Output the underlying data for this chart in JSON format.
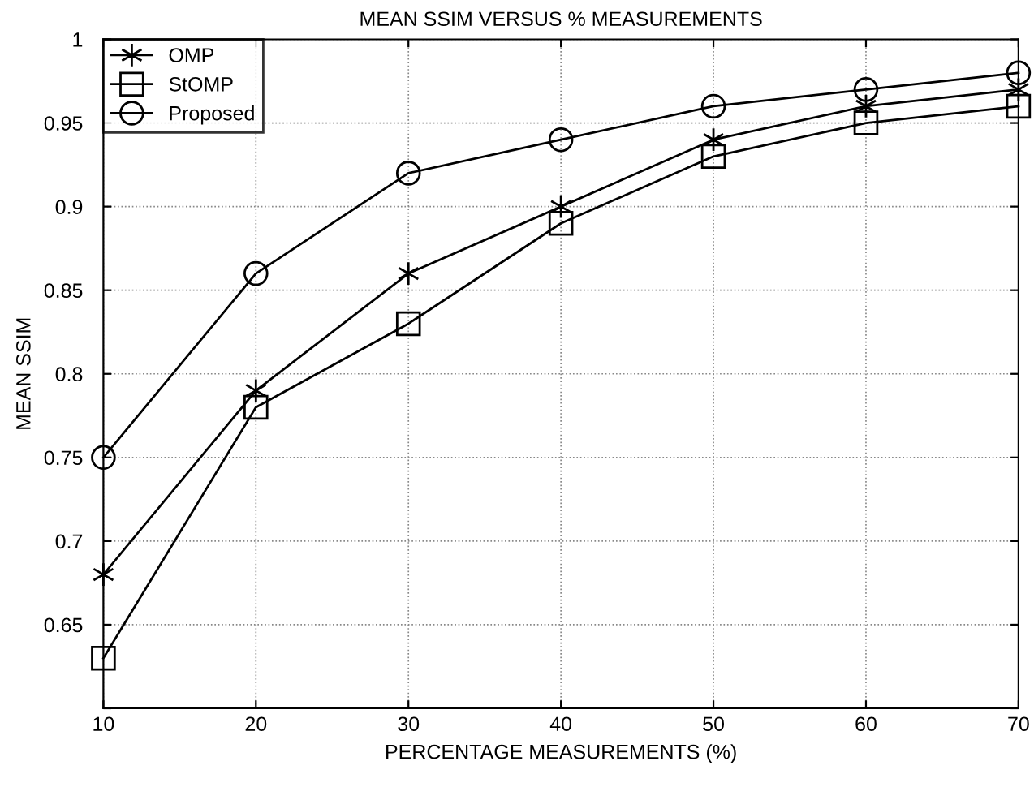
{
  "chart_data": {
    "type": "line",
    "title": "MEAN SSIM VERSUS % MEASUREMENTS",
    "xlabel": "PERCENTAGE MEASUREMENTS (%)",
    "ylabel": "MEAN SSIM",
    "x": [
      10,
      20,
      30,
      40,
      50,
      60,
      70
    ],
    "series": [
      {
        "name": "OMP",
        "color": "#000000",
        "marker": "cross",
        "values": [
          0.68,
          0.79,
          0.86,
          0.9,
          0.94,
          0.96,
          0.97
        ]
      },
      {
        "name": "StOMP",
        "color": "#000000",
        "marker": "square",
        "values": [
          0.63,
          0.78,
          0.83,
          0.89,
          0.93,
          0.95,
          0.96
        ]
      },
      {
        "name": "Proposed",
        "color": "#000000",
        "marker": "circle",
        "values": [
          0.75,
          0.86,
          0.92,
          0.94,
          0.96,
          0.97,
          0.98
        ]
      }
    ],
    "xlim": [
      10,
      70
    ],
    "xticks": [
      10,
      20,
      30,
      40,
      50,
      60,
      70
    ],
    "ylim": [
      0.6,
      1
    ],
    "yticks": [
      {
        "value": 0.6,
        "label": null
      },
      0.65,
      0.7,
      0.75,
      0.8,
      0.85,
      0.9,
      0.95,
      1
    ],
    "grid": true,
    "legend": "top left",
    "line_style": "solid"
  }
}
